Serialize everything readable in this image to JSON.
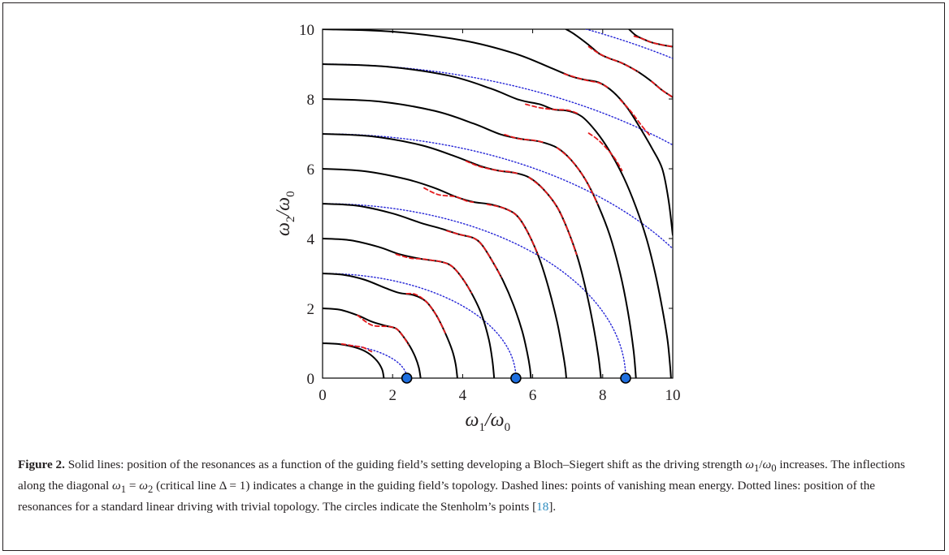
{
  "chart_data": {
    "type": "line",
    "xlabel": "ω1/ω0",
    "ylabel": "ω2/ω0",
    "xlim": [
      0,
      10
    ],
    "ylim": [
      0,
      10
    ],
    "xticks": [
      "0",
      "2",
      "4",
      "6",
      "8",
      "10"
    ],
    "yticks": [
      "0",
      "2",
      "4",
      "6",
      "8",
      "10"
    ],
    "grid": false,
    "legend": "none",
    "colors": {
      "solid": "#000000",
      "dashed": "#e41a1c",
      "dotted": "#2323d6",
      "circle_fill": "#1f6fe0",
      "circle_edge": "#000000"
    },
    "series": [
      {
        "style": "solid",
        "label_in_caption": "Solid lines: position of the resonances",
        "curves": [
          {
            "n": 1,
            "x": [
              0,
              0.5,
              1.0,
              1.3,
              1.55,
              1.7,
              1.75
            ],
            "y": [
              1,
              0.97,
              0.86,
              0.72,
              0.5,
              0.25,
              0
            ]
          },
          {
            "n": 2,
            "x": [
              0,
              0.5,
              1.0,
              1.4,
              1.8,
              2.1,
              2.3,
              2.5,
              2.65,
              2.75,
              2.8
            ],
            "y": [
              2,
              1.96,
              1.8,
              1.62,
              1.5,
              1.42,
              1.2,
              0.9,
              0.6,
              0.3,
              0
            ]
          },
          {
            "n": 3,
            "x": [
              0,
              0.6,
              1.2,
              1.8,
              2.2,
              2.6,
              2.95,
              3.25,
              3.5,
              3.7,
              3.8,
              3.85
            ],
            "y": [
              3,
              2.96,
              2.82,
              2.58,
              2.44,
              2.38,
              2.2,
              1.8,
              1.3,
              0.8,
              0.4,
              0
            ]
          },
          {
            "n": 4,
            "x": [
              0,
              0.8,
              1.6,
              2.2,
              2.8,
              3.4,
              3.7,
              4.0,
              4.3,
              4.55,
              4.75,
              4.85,
              4.9
            ],
            "y": [
              4,
              3.95,
              3.76,
              3.55,
              3.42,
              3.33,
              3.2,
              2.85,
              2.35,
              1.8,
              1.1,
              0.5,
              0
            ]
          },
          {
            "n": 5,
            "x": [
              0,
              1.0,
              2.0,
              2.8,
              3.4,
              3.9,
              4.3,
              4.55,
              4.85,
              5.15,
              5.45,
              5.7,
              5.85,
              5.92,
              5.95
            ],
            "y": [
              5,
              4.94,
              4.72,
              4.45,
              4.28,
              4.12,
              4.02,
              3.82,
              3.35,
              2.8,
              2.1,
              1.35,
              0.7,
              0.3,
              0
            ]
          },
          {
            "n": 6,
            "x": [
              0,
              1.2,
              2.4,
              3.2,
              3.8,
              4.3,
              4.8,
              5.3,
              5.6,
              5.9,
              6.2,
              6.45,
              6.7,
              6.85,
              6.93,
              6.96
            ],
            "y": [
              6,
              5.93,
              5.7,
              5.45,
              5.2,
              5.05,
              4.98,
              4.82,
              4.6,
              4.1,
              3.4,
              2.6,
              1.6,
              0.8,
              0.3,
              0
            ]
          },
          {
            "n": 7,
            "x": [
              0,
              1.4,
              2.8,
              3.8,
              4.5,
              5.0,
              5.5,
              5.9,
              6.3,
              6.7,
              7.0,
              7.3,
              7.55,
              7.75,
              7.88,
              7.95
            ],
            "y": [
              7,
              6.93,
              6.68,
              6.35,
              6.08,
              5.95,
              5.88,
              5.75,
              5.42,
              4.9,
              4.25,
              3.4,
              2.4,
              1.4,
              0.6,
              0
            ]
          },
          {
            "n": 8,
            "x": [
              0,
              1.6,
              3.2,
              4.3,
              5.1,
              5.7,
              6.2,
              6.7,
              7.1,
              7.5,
              7.85,
              8.2,
              8.5,
              8.72,
              8.88,
              8.95
            ],
            "y": [
              8,
              7.93,
              7.66,
              7.3,
              6.98,
              6.85,
              6.78,
              6.6,
              6.25,
              5.7,
              5.0,
              4.1,
              3.0,
              1.9,
              0.8,
              0
            ]
          },
          {
            "n": 9,
            "x": [
              0,
              1.8,
              3.6,
              4.8,
              5.6,
              6.2,
              6.6,
              7.0,
              7.4,
              7.8,
              8.2,
              8.6,
              8.95,
              9.25,
              9.5,
              9.7,
              9.85,
              9.92,
              9.95
            ],
            "y": [
              9,
              8.93,
              8.67,
              8.3,
              7.98,
              7.85,
              7.7,
              7.66,
              7.5,
              7.08,
              6.5,
              5.75,
              4.9,
              4.0,
              3.0,
              2.0,
              1.1,
              0.4,
              0
            ]
          },
          {
            "n": 10,
            "x": [
              0,
              2.0,
              4.0,
              5.5,
              6.5,
              7.1,
              7.5,
              7.9,
              8.3,
              8.7,
              9.05,
              9.4,
              9.7,
              9.88,
              10.0
            ],
            "y": [
              10,
              9.93,
              9.68,
              9.3,
              8.9,
              8.65,
              8.55,
              8.47,
              8.2,
              7.75,
              7.2,
              6.6,
              6.0,
              5.1,
              4.1
            ]
          },
          {
            "n": 11,
            "x": [
              6.95,
              7.2,
              7.6,
              7.9,
              8.2,
              8.5,
              8.8,
              9.1,
              9.4,
              9.7,
              10.0
            ],
            "y": [
              10,
              9.85,
              9.55,
              9.3,
              9.16,
              9.05,
              8.9,
              8.72,
              8.5,
              8.25,
              8.05
            ]
          },
          {
            "n": 12,
            "x": [
              8.75,
              8.95,
              9.15,
              9.4,
              9.7,
              10.0
            ],
            "y": [
              10,
              9.82,
              9.72,
              9.62,
              9.55,
              9.5
            ]
          }
        ]
      },
      {
        "style": "dashed",
        "label_in_caption": "Dashed lines: points of vanishing mean energy",
        "curves": [
          {
            "x": [
              0.55,
              0.9,
              1.15,
              1.4
            ],
            "y": [
              0.98,
              0.92,
              0.88,
              0.76
            ]
          },
          {
            "x": [
              1.0,
              1.4,
              1.85,
              2.1,
              2.3,
              2.45
            ],
            "y": [
              1.8,
              1.52,
              1.48,
              1.42,
              1.2,
              0.96
            ]
          },
          {
            "x": [
              2.4,
              2.65,
              2.95,
              3.25,
              3.5
            ],
            "y": [
              2.42,
              2.4,
              2.2,
              1.8,
              1.3
            ]
          },
          {
            "x": [
              2.1,
              2.5,
              2.8,
              3.1,
              3.4,
              3.7,
              4.0,
              4.25
            ],
            "y": [
              3.55,
              3.44,
              3.42,
              3.38,
              3.33,
              3.2,
              2.85,
              2.45
            ]
          },
          {
            "x": [
              3.55,
              3.9,
              4.3,
              4.55,
              4.85,
              5.1
            ],
            "y": [
              4.22,
              4.12,
              4.02,
              3.82,
              3.35,
              2.9
            ]
          },
          {
            "x": [
              2.9,
              3.3,
              3.8,
              4.1,
              4.3
            ],
            "y": [
              5.45,
              5.26,
              5.2,
              5.08,
              5.04
            ]
          },
          {
            "x": [
              4.7,
              5.0,
              5.3,
              5.6,
              5.9,
              6.15
            ],
            "y": [
              4.98,
              4.92,
              4.82,
              4.6,
              4.1,
              3.55
            ]
          },
          {
            "x": [
              4.1,
              4.5,
              5.0,
              5.3,
              5.6
            ],
            "y": [
              6.22,
              6.06,
              5.95,
              5.92,
              5.86
            ]
          },
          {
            "x": [
              5.9,
              6.3,
              6.7,
              7.0,
              7.25
            ],
            "y": [
              5.75,
              5.42,
              4.9,
              4.25,
              3.55
            ]
          },
          {
            "x": [
              5.2,
              5.6,
              6.0,
              6.3
            ],
            "y": [
              6.98,
              6.86,
              6.82,
              6.76
            ]
          },
          {
            "x": [
              6.7,
              7.1,
              7.5,
              7.85
            ],
            "y": [
              6.6,
              6.25,
              5.7,
              5.0
            ]
          },
          {
            "x": [
              5.8,
              6.2,
              6.6,
              7.0,
              7.3
            ],
            "y": [
              7.85,
              7.75,
              7.7,
              7.68,
              7.58
            ]
          },
          {
            "x": [
              7.6,
              7.9,
              8.3,
              8.55
            ],
            "y": [
              7.02,
              6.8,
              6.36,
              5.95
            ]
          },
          {
            "x": [
              6.9,
              7.3,
              7.6,
              7.9,
              8.2
            ],
            "y": [
              8.72,
              8.6,
              8.52,
              8.46,
              8.3
            ]
          },
          {
            "x": [
              8.5,
              8.8,
              9.1,
              9.35
            ],
            "y": [
              7.98,
              7.65,
              7.25,
              6.95
            ]
          },
          {
            "x": [
              7.6,
              7.9,
              8.2,
              8.5,
              8.8,
              9.0
            ],
            "y": [
              9.5,
              9.3,
              9.16,
              9.05,
              8.9,
              8.78
            ]
          },
          {
            "x": [
              9.4,
              9.7,
              10.0
            ],
            "y": [
              8.5,
              8.25,
              8.05
            ]
          },
          {
            "x": [
              8.9,
              9.15,
              9.4,
              9.7,
              10.0
            ],
            "y": [
              9.8,
              9.72,
              9.62,
              9.55,
              9.5
            ]
          }
        ]
      },
      {
        "style": "dotted",
        "label_in_caption": "Dotted lines: position of the resonances for a standard linear driving",
        "curves": [
          {
            "a": 2.4048,
            "b": 1
          },
          {
            "a": 5.5201,
            "b": 3
          },
          {
            "a": 8.6537,
            "b": 5
          },
          {
            "a": 11.7915,
            "b": 7
          },
          {
            "a": 14.9309,
            "b": 9
          },
          {
            "a": 18.0711,
            "b": 11
          }
        ]
      }
    ],
    "markers": {
      "shape": "circle",
      "x": [
        2.405,
        5.52,
        8.654
      ],
      "y": [
        0,
        0,
        0
      ],
      "label_in_caption": "Stenholm's points"
    }
  },
  "caption": {
    "label": "Figure 2.",
    "t1": " Solid lines: position of the resonances as a function of the guiding field’s setting developing a Bloch–Siegert shift as the driving strength ",
    "m1a": "ω",
    "m1a_sub": "1",
    "m1sep": "/",
    "m1b": "ω",
    "m1b_sub": "0",
    "t2": " increases. The inflections along the diagonal ",
    "m2a": "ω",
    "m2a_sub": "1",
    "m2eq": " = ",
    "m2b": "ω",
    "m2b_sub": "2",
    "t3": " (critical line ",
    "m3": "Δ = 1",
    "t4": ") indicates a change in the guiding field’s topology. Dashed lines: points of vanishing mean energy. Dotted lines: position of the resonances for a standard linear driving with trivial topology. The circles indicate the Stenholm’s points [",
    "ref": "18",
    "t5": "]."
  }
}
